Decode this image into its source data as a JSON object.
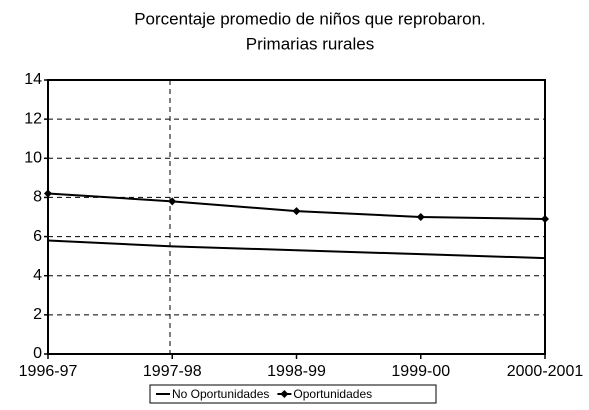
{
  "chart_data": {
    "type": "line",
    "title": [
      "Porcentaje promedio de niños que reprobaron.",
      "Primarias rurales"
    ],
    "categories": [
      "1996-97",
      "1997-98",
      "1998-99",
      "1999-00",
      "2000-2001"
    ],
    "series": [
      {
        "name": "No Oportunidades",
        "color": "#000000",
        "marker": false,
        "values": [
          5.8,
          5.5,
          5.3,
          5.1,
          4.9
        ]
      },
      {
        "name": "Oportunidades",
        "color": "#000000",
        "marker": true,
        "values": [
          8.2,
          7.8,
          7.3,
          7.0,
          6.9
        ]
      }
    ],
    "ylim": [
      0,
      14
    ],
    "yticks": [
      0,
      2,
      4,
      6,
      8,
      10,
      12,
      14
    ],
    "grid": true
  }
}
